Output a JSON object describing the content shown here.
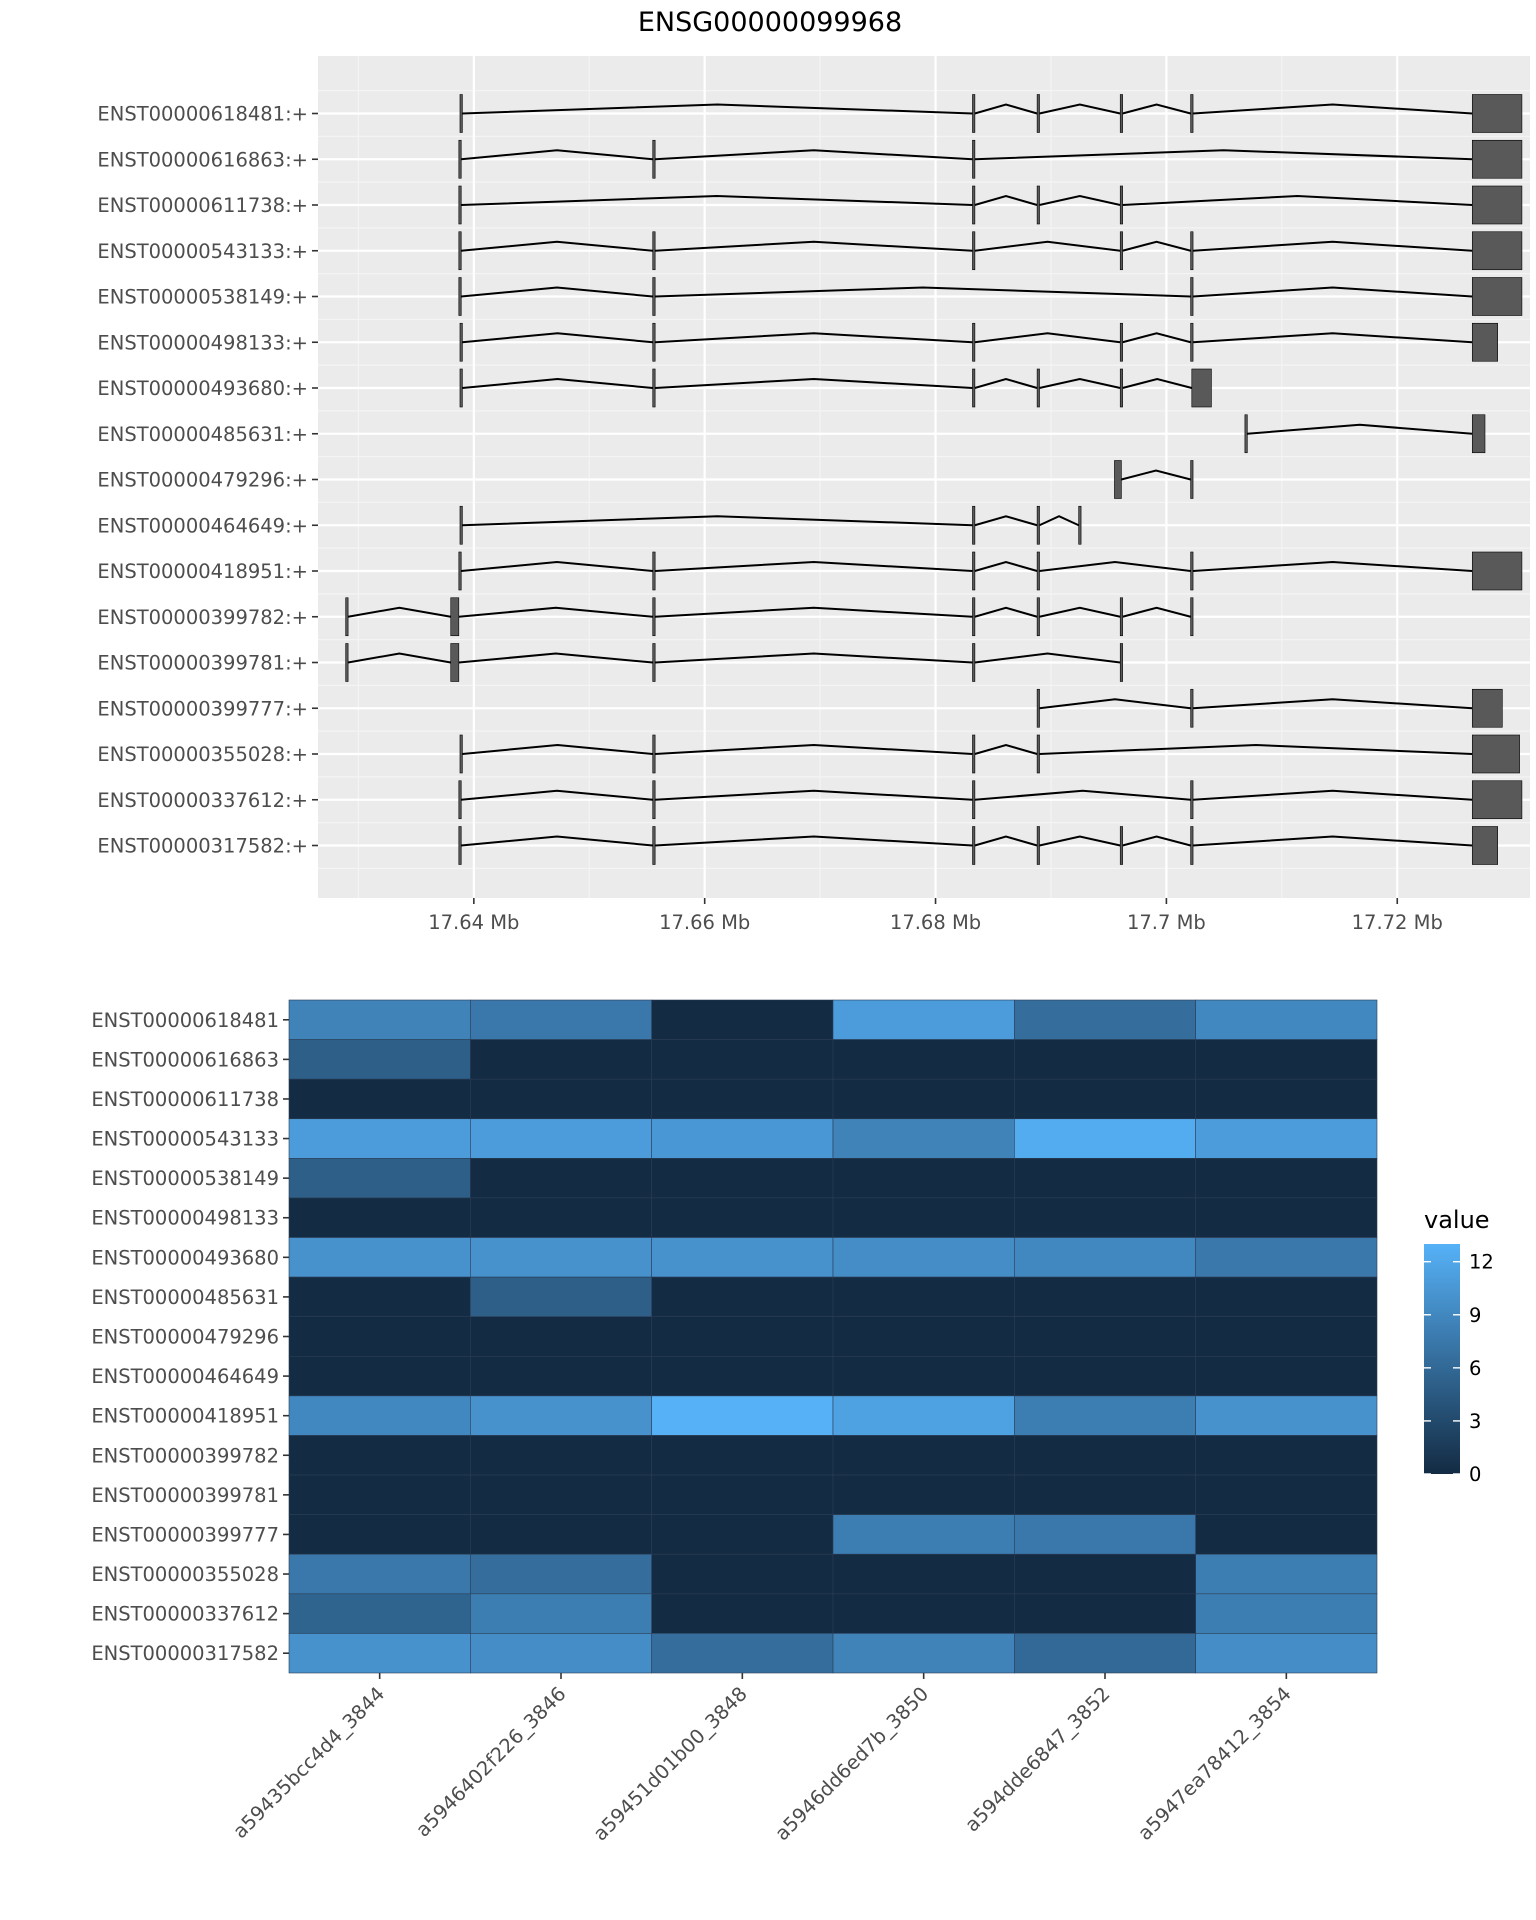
{
  "chart_data": [
    {
      "type": "gene_model",
      "title": "ENSG00000099968",
      "x_unit": "Mb",
      "xlim": [
        17.6265,
        17.7315
      ],
      "x_ticks": [
        17.64,
        17.66,
        17.68,
        17.7,
        17.72
      ],
      "x_tick_labels": [
        "17.64 Mb",
        "17.66 Mb",
        "17.68 Mb",
        "17.7 Mb",
        "17.72 Mb"
      ],
      "grid": true,
      "exon_color": "#595959",
      "transcripts": [
        {
          "label": "ENST00000618481:+",
          "exons": [
            [
              17.6388,
              17.639
            ],
            [
              17.6832,
              17.6834
            ],
            [
              17.6888,
              17.689
            ],
            [
              17.696,
              17.6962
            ],
            [
              17.7021,
              17.7023
            ],
            [
              17.7265,
              17.7308
            ]
          ]
        },
        {
          "label": "ENST00000616863:+",
          "exons": [
            [
              17.6387,
              17.6389
            ],
            [
              17.6555,
              17.6557
            ],
            [
              17.6832,
              17.6834
            ],
            [
              17.7265,
              17.7308
            ]
          ]
        },
        {
          "label": "ENST00000611738:+",
          "exons": [
            [
              17.6387,
              17.6389
            ],
            [
              17.6832,
              17.6834
            ],
            [
              17.6888,
              17.689
            ],
            [
              17.696,
              17.6962
            ],
            [
              17.7265,
              17.7308
            ]
          ]
        },
        {
          "label": "ENST00000543133:+",
          "exons": [
            [
              17.6387,
              17.6389
            ],
            [
              17.6555,
              17.6557
            ],
            [
              17.6832,
              17.6834
            ],
            [
              17.696,
              17.6962
            ],
            [
              17.7021,
              17.7023
            ],
            [
              17.7265,
              17.7308
            ]
          ]
        },
        {
          "label": "ENST00000538149:+",
          "exons": [
            [
              17.6387,
              17.6389
            ],
            [
              17.6555,
              17.6557
            ],
            [
              17.7021,
              17.7023
            ],
            [
              17.7265,
              17.7308
            ]
          ]
        },
        {
          "label": "ENST00000498133:+",
          "exons": [
            [
              17.6388,
              17.639
            ],
            [
              17.6555,
              17.6557
            ],
            [
              17.6832,
              17.6834
            ],
            [
              17.696,
              17.6962
            ],
            [
              17.7021,
              17.7023
            ],
            [
              17.7265,
              17.7287
            ]
          ]
        },
        {
          "label": "ENST00000493680:+",
          "exons": [
            [
              17.6388,
              17.639
            ],
            [
              17.6555,
              17.6557
            ],
            [
              17.6832,
              17.6834
            ],
            [
              17.6888,
              17.689
            ],
            [
              17.696,
              17.6962
            ],
            [
              17.7022,
              17.7039
            ]
          ]
        },
        {
          "label": "ENST00000485631:+",
          "exons": [
            [
              17.7068,
              17.707
            ],
            [
              17.7265,
              17.7276
            ]
          ]
        },
        {
          "label": "ENST00000479296:+",
          "exons": [
            [
              17.6955,
              17.6961
            ],
            [
              17.7021,
              17.7023
            ]
          ]
        },
        {
          "label": "ENST00000464649:+",
          "exons": [
            [
              17.6388,
              17.639
            ],
            [
              17.6832,
              17.6834
            ],
            [
              17.6888,
              17.689
            ],
            [
              17.6924,
              17.6926
            ]
          ]
        },
        {
          "label": "ENST00000418951:+",
          "exons": [
            [
              17.6387,
              17.6389
            ],
            [
              17.6555,
              17.6557
            ],
            [
              17.6832,
              17.6834
            ],
            [
              17.6888,
              17.689
            ],
            [
              17.7021,
              17.7023
            ],
            [
              17.7265,
              17.7308
            ]
          ]
        },
        {
          "label": "ENST00000399782:+",
          "exons": [
            [
              17.6289,
              17.6291
            ],
            [
              17.638,
              17.6387
            ],
            [
              17.6555,
              17.6557
            ],
            [
              17.6832,
              17.6834
            ],
            [
              17.6888,
              17.689
            ],
            [
              17.696,
              17.6962
            ],
            [
              17.7021,
              17.7023
            ]
          ]
        },
        {
          "label": "ENST00000399781:+",
          "exons": [
            [
              17.6289,
              17.6291
            ],
            [
              17.638,
              17.6387
            ],
            [
              17.6555,
              17.6557
            ],
            [
              17.6832,
              17.6834
            ],
            [
              17.696,
              17.6962
            ]
          ]
        },
        {
          "label": "ENST00000399777:+",
          "exons": [
            [
              17.6888,
              17.689
            ],
            [
              17.7021,
              17.7023
            ],
            [
              17.7265,
              17.7291
            ]
          ]
        },
        {
          "label": "ENST00000355028:+",
          "exons": [
            [
              17.6388,
              17.639
            ],
            [
              17.6555,
              17.6557
            ],
            [
              17.6832,
              17.6834
            ],
            [
              17.6888,
              17.689
            ],
            [
              17.7265,
              17.7306
            ]
          ]
        },
        {
          "label": "ENST00000337612:+",
          "exons": [
            [
              17.6387,
              17.6389
            ],
            [
              17.6555,
              17.6557
            ],
            [
              17.6832,
              17.6834
            ],
            [
              17.7021,
              17.7023
            ],
            [
              17.7265,
              17.7308
            ]
          ]
        },
        {
          "label": "ENST00000317582:+",
          "exons": [
            [
              17.6387,
              17.6389
            ],
            [
              17.6555,
              17.6557
            ],
            [
              17.6832,
              17.6834
            ],
            [
              17.6888,
              17.689
            ],
            [
              17.696,
              17.6962
            ],
            [
              17.7021,
              17.7023
            ],
            [
              17.7265,
              17.7287
            ]
          ]
        }
      ]
    },
    {
      "type": "heatmap",
      "rows": [
        "ENST00000618481",
        "ENST00000616863",
        "ENST00000611738",
        "ENST00000543133",
        "ENST00000538149",
        "ENST00000498133",
        "ENST00000493680",
        "ENST00000485631",
        "ENST00000479296",
        "ENST00000464649",
        "ENST00000418951",
        "ENST00000399782",
        "ENST00000399781",
        "ENST00000399777",
        "ENST00000355028",
        "ENST00000337612",
        "ENST00000317582"
      ],
      "columns": [
        "a59435bcc4d4_3844",
        "a5946402f226_3846",
        "a59451d01b00_3848",
        "a5946dd6ed7b_3850",
        "a594dde6847_3852",
        "a5947ea78412_3854"
      ],
      "values": [
        [
          8.5,
          7.5,
          0,
          11.0,
          6.5,
          9.0
        ],
        [
          5.0,
          0,
          0,
          0,
          0,
          0
        ],
        [
          0,
          0,
          0,
          0,
          0,
          0
        ],
        [
          11.0,
          11.0,
          10.5,
          8.5,
          12.5,
          11.0
        ],
        [
          5.0,
          0,
          0,
          0,
          0,
          0
        ],
        [
          0,
          0,
          0,
          0,
          0,
          0
        ],
        [
          10.0,
          10.0,
          10.0,
          9.5,
          9.0,
          7.5
        ],
        [
          0,
          5.0,
          0,
          0,
          0,
          0
        ],
        [
          0,
          0,
          0,
          0,
          0,
          0
        ],
        [
          0,
          0,
          0,
          0,
          0,
          0
        ],
        [
          9.0,
          10.0,
          13.0,
          11.5,
          8.0,
          10.0
        ],
        [
          0,
          0,
          0,
          0,
          0,
          0
        ],
        [
          0,
          0,
          0,
          0,
          0,
          0
        ],
        [
          0,
          0,
          0,
          8.0,
          7.5,
          0
        ],
        [
          7.5,
          6.5,
          0,
          0,
          0,
          8.0
        ],
        [
          5.5,
          8.0,
          0,
          0,
          0,
          8.0
        ],
        [
          10.0,
          9.5,
          6.5,
          8.5,
          6.0,
          9.5
        ]
      ],
      "legend_title": "value",
      "legend_ticks": [
        0,
        3,
        6,
        9,
        12
      ],
      "value_range": [
        0,
        13
      ],
      "color_low": "#132B43",
      "color_high": "#56B1F7",
      "legend_position": "right"
    }
  ]
}
